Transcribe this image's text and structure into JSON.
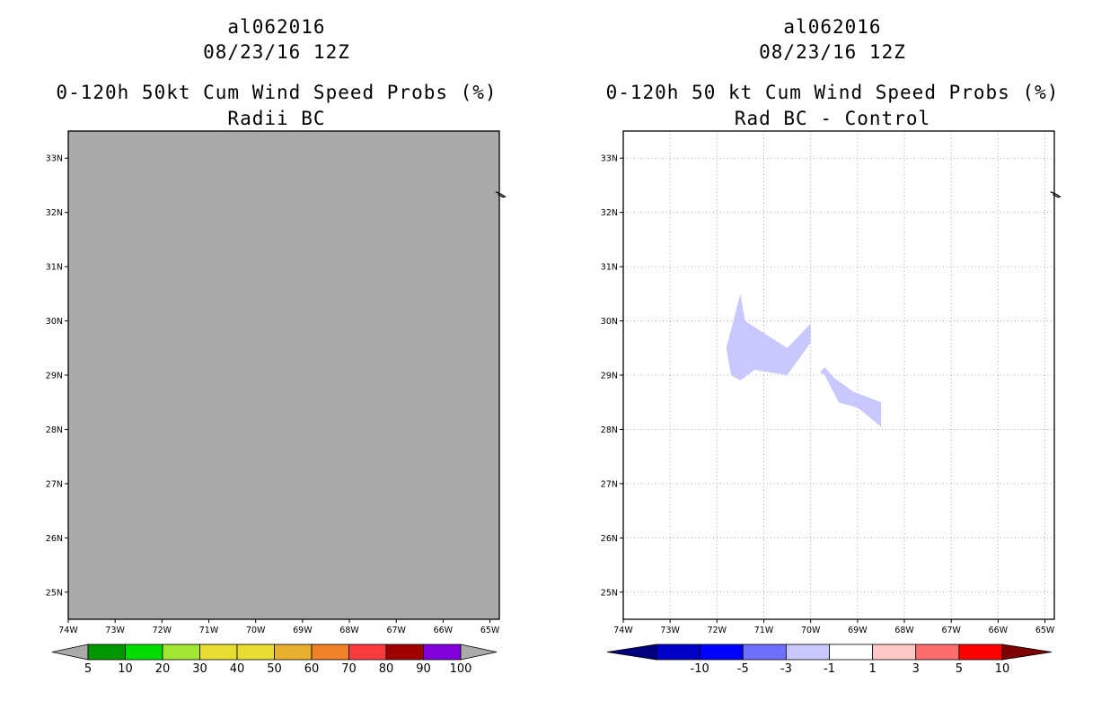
{
  "chart_data": [
    {
      "type": "heatmap",
      "storm_id": "al062016",
      "datetime": "08/23/16 12Z",
      "title": "0-120h 50kt Cum Wind Speed Probs (%)",
      "subtitle": "Radii BC",
      "lon_range": [
        -74,
        -64.8
      ],
      "lat_range": [
        24.5,
        33.5
      ],
      "x_ticks": [
        "74W",
        "73W",
        "72W",
        "71W",
        "70W",
        "69W",
        "68W",
        "67W",
        "66W",
        "65W"
      ],
      "y_ticks": [
        "25N",
        "26N",
        "27N",
        "28N",
        "29N",
        "30N",
        "31N",
        "32N",
        "33N"
      ],
      "field": "all values below lowest contour (5%) — shaded gray",
      "grid": false,
      "colorbar": {
        "labels": [
          "5",
          "10",
          "20",
          "30",
          "40",
          "50",
          "60",
          "70",
          "80",
          "90",
          "100"
        ],
        "colors": [
          "#009600",
          "#00dc00",
          "#a0e632",
          "#e6dc32",
          "#e6dc32",
          "#e6af2d",
          "#f08228",
          "#fa3c3c",
          "#a00000",
          "#8200dc"
        ],
        "under_color": "#aaaaaa",
        "over_color": "#aaaaaa"
      }
    },
    {
      "type": "heatmap",
      "storm_id": "al062016",
      "datetime": "08/23/16 12Z",
      "title": "0-120h 50 kt Cum Wind Speed Probs (%)",
      "subtitle": "Rad BC - Control",
      "lon_range": [
        -74,
        -64.8
      ],
      "lat_range": [
        24.5,
        33.5
      ],
      "x_ticks": [
        "74W",
        "73W",
        "72W",
        "71W",
        "70W",
        "69W",
        "68W",
        "67W",
        "66W",
        "65W"
      ],
      "y_ticks": [
        "25N",
        "26N",
        "27N",
        "28N",
        "29N",
        "30N",
        "31N",
        "32N",
        "33N"
      ],
      "grid": true,
      "regions": [
        {
          "range": "-3 to -1",
          "color": "#c8c8ff",
          "polygon_lonlat": [
            [
              -71.5,
              30.5
            ],
            [
              -71.4,
              30.0
            ],
            [
              -70.5,
              29.5
            ],
            [
              -70.0,
              29.95
            ],
            [
              -70.0,
              29.6
            ],
            [
              -70.5,
              29.0
            ],
            [
              -71.2,
              29.1
            ],
            [
              -71.5,
              28.9
            ],
            [
              -71.7,
              29.0
            ],
            [
              -71.8,
              29.5
            ]
          ]
        },
        {
          "range": "-3 to -1",
          "color": "#c8c8ff",
          "polygon_lonlat": [
            [
              -69.7,
              29.15
            ],
            [
              -69.5,
              28.95
            ],
            [
              -69.1,
              28.7
            ],
            [
              -68.5,
              28.5
            ],
            [
              -68.5,
              28.05
            ],
            [
              -69.0,
              28.4
            ],
            [
              -69.4,
              28.5
            ],
            [
              -69.7,
              29.0
            ],
            [
              -69.8,
              29.05
            ]
          ]
        }
      ],
      "colorbar": {
        "labels": [
          "-10",
          "-5",
          "-3",
          "-1",
          "1",
          "3",
          "5",
          "10"
        ],
        "colors": [
          "#0000c8",
          "#0000ff",
          "#6e6eff",
          "#c8c8ff",
          "#ffffff",
          "#ffc8c8",
          "#ff6e6e",
          "#ff0000"
        ],
        "under_color": "#00007f",
        "over_color": "#7f0000"
      }
    }
  ]
}
